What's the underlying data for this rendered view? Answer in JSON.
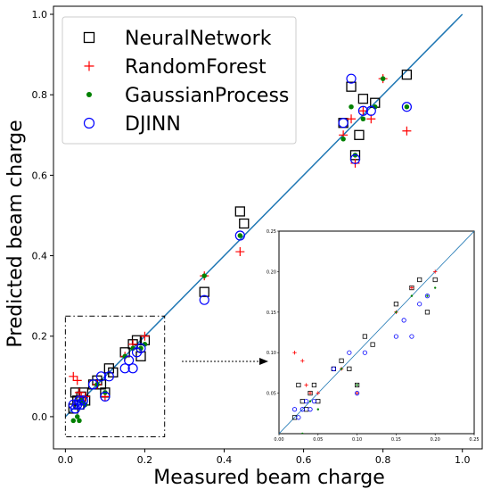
{
  "chart_data": {
    "type": "scatter",
    "xlabel": "Measured beam charge",
    "ylabel": "Predicted beam charge",
    "xlim": [
      -0.03,
      1.05
    ],
    "ylim": [
      -0.08,
      1.02
    ],
    "xticks": [
      "0.0",
      "0.2",
      "0.4",
      "0.6",
      "0.8",
      "1.0"
    ],
    "yticks": [
      "0.0",
      "0.2",
      "0.4",
      "0.6",
      "0.8",
      "1.0"
    ],
    "legend_position": "top-left",
    "reference_line": {
      "from": [
        0,
        0
      ],
      "to": [
        1,
        1
      ],
      "color": "#1f77b4"
    },
    "series": [
      {
        "name": "NeuralNetwork",
        "marker": "square",
        "color": "#000000",
        "points": [
          [
            0.02,
            0.02
          ],
          [
            0.025,
            0.06
          ],
          [
            0.03,
            0.04
          ],
          [
            0.035,
            0.03
          ],
          [
            0.04,
            0.05
          ],
          [
            0.045,
            0.06
          ],
          [
            0.05,
            0.04
          ],
          [
            0.07,
            0.08
          ],
          [
            0.08,
            0.09
          ],
          [
            0.09,
            0.08
          ],
          [
            0.1,
            0.06
          ],
          [
            0.11,
            0.12
          ],
          [
            0.12,
            0.11
          ],
          [
            0.15,
            0.16
          ],
          [
            0.17,
            0.18
          ],
          [
            0.18,
            0.19
          ],
          [
            0.19,
            0.15
          ],
          [
            0.2,
            0.19
          ],
          [
            0.35,
            0.31
          ],
          [
            0.44,
            0.51
          ],
          [
            0.45,
            0.48
          ],
          [
            0.7,
            0.73
          ],
          [
            0.72,
            0.82
          ],
          [
            0.73,
            0.65
          ],
          [
            0.74,
            0.7
          ],
          [
            0.75,
            0.79
          ],
          [
            0.78,
            0.78
          ],
          [
            0.86,
            0.85
          ]
        ]
      },
      {
        "name": "RandomForest",
        "marker": "plus",
        "color": "#ff0000",
        "points": [
          [
            0.02,
            0.1
          ],
          [
            0.03,
            0.09
          ],
          [
            0.035,
            0.06
          ],
          [
            0.04,
            0.05
          ],
          [
            0.05,
            0.05
          ],
          [
            0.08,
            0.08
          ],
          [
            0.1,
            0.05
          ],
          [
            0.15,
            0.15
          ],
          [
            0.17,
            0.18
          ],
          [
            0.2,
            0.2
          ],
          [
            0.35,
            0.35
          ],
          [
            0.44,
            0.41
          ],
          [
            0.7,
            0.7
          ],
          [
            0.72,
            0.74
          ],
          [
            0.73,
            0.63
          ],
          [
            0.75,
            0.76
          ],
          [
            0.77,
            0.74
          ],
          [
            0.8,
            0.84
          ],
          [
            0.86,
            0.71
          ]
        ]
      },
      {
        "name": "GaussianProcess",
        "marker": "dot",
        "color": "#008000",
        "points": [
          [
            0.02,
            -0.01
          ],
          [
            0.03,
            0.0
          ],
          [
            0.035,
            -0.01
          ],
          [
            0.04,
            0.04
          ],
          [
            0.05,
            0.03
          ],
          [
            0.08,
            0.08
          ],
          [
            0.1,
            0.06
          ],
          [
            0.15,
            0.15
          ],
          [
            0.17,
            0.17
          ],
          [
            0.19,
            0.17
          ],
          [
            0.2,
            0.18
          ],
          [
            0.35,
            0.35
          ],
          [
            0.44,
            0.45
          ],
          [
            0.7,
            0.69
          ],
          [
            0.72,
            0.77
          ],
          [
            0.73,
            0.65
          ],
          [
            0.75,
            0.74
          ],
          [
            0.78,
            0.77
          ],
          [
            0.8,
            0.84
          ],
          [
            0.86,
            0.77
          ]
        ]
      },
      {
        "name": "DJINN",
        "marker": "circle",
        "color": "#0000ff",
        "points": [
          [
            0.02,
            0.03
          ],
          [
            0.025,
            0.02
          ],
          [
            0.03,
            0.03
          ],
          [
            0.035,
            0.04
          ],
          [
            0.04,
            0.03
          ],
          [
            0.045,
            0.04
          ],
          [
            0.07,
            0.08
          ],
          [
            0.09,
            0.1
          ],
          [
            0.1,
            0.05
          ],
          [
            0.11,
            0.1
          ],
          [
            0.15,
            0.12
          ],
          [
            0.16,
            0.14
          ],
          [
            0.17,
            0.12
          ],
          [
            0.18,
            0.16
          ],
          [
            0.19,
            0.17
          ],
          [
            0.35,
            0.29
          ],
          [
            0.44,
            0.45
          ],
          [
            0.7,
            0.73
          ],
          [
            0.72,
            0.84
          ],
          [
            0.73,
            0.64
          ],
          [
            0.75,
            0.76
          ],
          [
            0.77,
            0.76
          ],
          [
            0.86,
            0.77
          ]
        ]
      }
    ],
    "zoom_box": {
      "xlim": [
        0,
        0.25
      ],
      "ylim": [
        -0.05,
        0.25
      ]
    },
    "inset": {
      "xlim": [
        0,
        0.25
      ],
      "ylim": [
        0,
        0.25
      ],
      "xticks": [
        "0.00",
        "0.05",
        "0.10",
        "0.15",
        "0.20",
        "0.25"
      ],
      "yticks": [
        "0.05",
        "0.10",
        "0.15",
        "0.20",
        "0.25"
      ]
    }
  }
}
